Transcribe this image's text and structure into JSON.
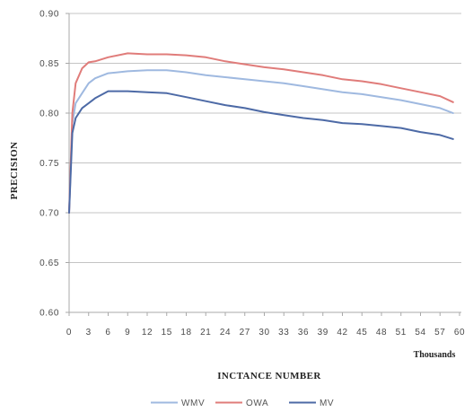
{
  "chart_data": {
    "type": "line",
    "ylabel": "PRECISION",
    "xlabel": "INCTANCE NUMBER",
    "x_unit_label": "Thousands",
    "xlim": [
      0,
      60
    ],
    "ylim": [
      0.6,
      0.9
    ],
    "x_tick_labels": [
      "0",
      "3",
      "6",
      "9",
      "12",
      "15",
      "18",
      "21",
      "24",
      "27",
      "30",
      "33",
      "36",
      "39",
      "42",
      "45",
      "48",
      "51",
      "54",
      "57",
      "60"
    ],
    "y_tick_labels": [
      "0.60",
      "0.65",
      "0.70",
      "0.75",
      "0.80",
      "0.85",
      "0.90"
    ],
    "grid": true,
    "legend_position": "bottom",
    "x": [
      0,
      0.5,
      1,
      2,
      3,
      4,
      6,
      9,
      12,
      15,
      18,
      21,
      24,
      27,
      30,
      33,
      36,
      39,
      42,
      45,
      48,
      51,
      54,
      57,
      59
    ],
    "series": [
      {
        "name": "WMV",
        "color": "#9fb9e0",
        "values": [
          0.7,
          0.79,
          0.81,
          0.82,
          0.83,
          0.835,
          0.84,
          0.842,
          0.843,
          0.843,
          0.841,
          0.838,
          0.836,
          0.834,
          0.832,
          0.83,
          0.827,
          0.824,
          0.821,
          0.819,
          0.816,
          0.813,
          0.809,
          0.805,
          0.8
        ]
      },
      {
        "name": "OWA",
        "color": "#e07c7a",
        "values": [
          0.7,
          0.8,
          0.83,
          0.845,
          0.851,
          0.852,
          0.856,
          0.86,
          0.859,
          0.859,
          0.858,
          0.856,
          0.852,
          0.849,
          0.846,
          0.844,
          0.841,
          0.838,
          0.834,
          0.832,
          0.829,
          0.825,
          0.821,
          0.817,
          0.811
        ]
      },
      {
        "name": "MV",
        "color": "#4d6aa6",
        "values": [
          0.7,
          0.78,
          0.795,
          0.805,
          0.81,
          0.815,
          0.822,
          0.822,
          0.821,
          0.82,
          0.816,
          0.812,
          0.808,
          0.805,
          0.801,
          0.798,
          0.795,
          0.793,
          0.79,
          0.789,
          0.787,
          0.785,
          0.781,
          0.778,
          0.774
        ]
      }
    ]
  }
}
